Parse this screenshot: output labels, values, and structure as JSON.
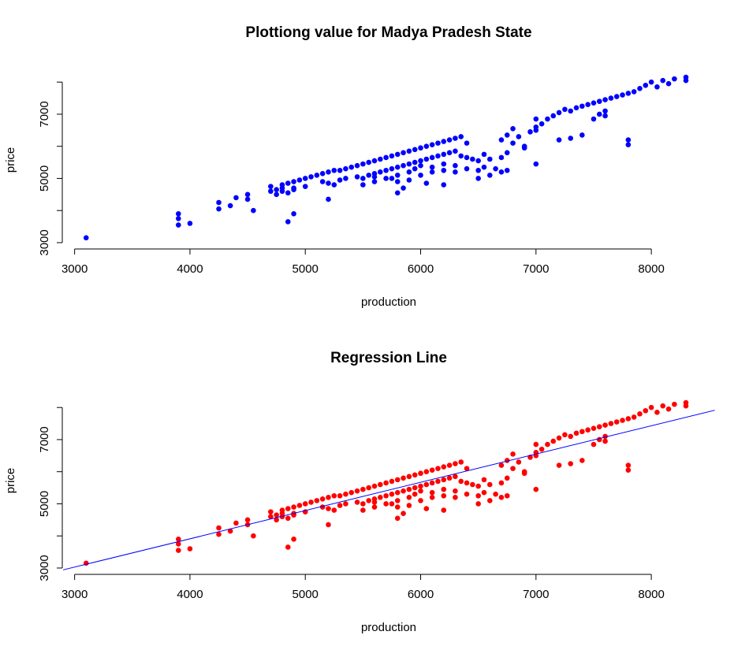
{
  "chart_data": [
    {
      "type": "scatter",
      "title": "Plottiong value for Madya Pradesh State",
      "xlabel": "production",
      "ylabel": "price",
      "xlim": [
        2900,
        8300
      ],
      "ylim": [
        2950,
        8250
      ],
      "xticks": [
        "3000",
        "4000",
        "5000",
        "6000",
        "7000",
        "8000"
      ],
      "yticks": [
        "3000",
        "5000",
        "7000"
      ],
      "point_color": "#0000ff",
      "series": [
        {
          "x": [
            3100,
            3900,
            3900,
            3900,
            4000,
            4250,
            4250,
            4350,
            4400,
            4500,
            4500,
            4550,
            4700,
            4700,
            4750,
            4800,
            4800,
            4850,
            4850,
            4900,
            4900,
            4950,
            5000,
            5050,
            5100,
            5150,
            5200,
            5250,
            5300,
            5350,
            5400,
            5450,
            5500,
            5550,
            5600,
            5650,
            5700,
            5750,
            5800,
            5850,
            5900,
            5950,
            6000,
            6050,
            6100,
            6150,
            6200,
            6250,
            6300,
            6350,
            6400,
            4750,
            4800,
            4900,
            5000,
            5150,
            5200,
            5300,
            5350,
            5450,
            5500,
            5550,
            5600,
            5650,
            5700,
            5750,
            5800,
            5850,
            5900,
            5950,
            6000,
            6050,
            6100,
            6150,
            6200,
            6250,
            6300,
            6350,
            6400,
            6450,
            6500,
            5600,
            5750,
            5800,
            5900,
            5950,
            6000,
            6100,
            6200,
            6300,
            6400,
            6500,
            5250,
            5500,
            5600,
            5700,
            5800,
            5900,
            6000,
            6100,
            6200,
            6300,
            4850,
            4900,
            5200,
            5800,
            5850,
            6050,
            6200,
            6550,
            6600,
            6650,
            6700,
            6750,
            6800,
            6850,
            6900,
            6950,
            7000,
            7050,
            7100,
            7150,
            7200,
            7250,
            7300,
            7350,
            7400,
            7450,
            7500,
            7550,
            7600,
            7650,
            7700,
            7750,
            7800,
            7850,
            7900,
            7950,
            8000,
            8050,
            8100,
            8150,
            8200,
            8300,
            8300,
            7500,
            7550,
            7600,
            6700,
            6750,
            6800,
            7000,
            7200,
            7300,
            7400,
            7600,
            7800,
            7800,
            6900,
            7000,
            6700,
            6750,
            6500,
            6600,
            7000,
            6550
          ],
          "y": [
            3150,
            3550,
            3750,
            3900,
            3600,
            4050,
            4250,
            4150,
            4400,
            4350,
            4500,
            4000,
            4600,
            4750,
            4650,
            4700,
            4800,
            4550,
            4850,
            4700,
            4900,
            4950,
            5000,
            5050,
            5100,
            5150,
            5200,
            5250,
            5250,
            5300,
            5350,
            5400,
            5450,
            5500,
            5550,
            5600,
            5650,
            5700,
            5750,
            5800,
            5850,
            5900,
            5950,
            6000,
            6050,
            6100,
            6150,
            6200,
            6250,
            6300,
            6100,
            4500,
            4600,
            4650,
            4750,
            4900,
            4850,
            4950,
            5000,
            5050,
            5000,
            5100,
            5150,
            5200,
            5250,
            5300,
            5350,
            5400,
            5450,
            5500,
            5550,
            5600,
            5650,
            5700,
            5750,
            5800,
            5850,
            5700,
            5650,
            5600,
            5550,
            4900,
            5000,
            5100,
            5200,
            5300,
            5400,
            5350,
            5450,
            5400,
            5300,
            5250,
            4800,
            4800,
            5050,
            5000,
            4900,
            4950,
            5100,
            5200,
            5250,
            5200,
            3650,
            3900,
            4350,
            4550,
            4700,
            4850,
            4800,
            5350,
            5600,
            5300,
            5650,
            5800,
            6100,
            6300,
            5950,
            6450,
            6600,
            6700,
            6850,
            6950,
            7050,
            7150,
            7100,
            7200,
            7250,
            7300,
            7350,
            7400,
            7450,
            7500,
            7550,
            7600,
            7650,
            7700,
            7800,
            7900,
            8000,
            7850,
            8050,
            7950,
            8100,
            8050,
            8150,
            6850,
            7000,
            7100,
            6200,
            6350,
            6550,
            6850,
            6200,
            6250,
            6350,
            6950,
            6050,
            6200,
            6000,
            5450,
            5200,
            5250,
            5000,
            5100,
            6500,
            5750
          ]
        }
      ]
    },
    {
      "type": "scatter",
      "title": "Regression Line",
      "xlabel": "production",
      "ylabel": "price",
      "xlim": [
        2900,
        8300
      ],
      "ylim": [
        2950,
        8250
      ],
      "xticks": [
        "3000",
        "4000",
        "5000",
        "6000",
        "7000",
        "8000"
      ],
      "yticks": [
        "3000",
        "5000",
        "7000"
      ],
      "point_color": "#ff0000",
      "line_color": "#0000ff",
      "regression_line": {
        "slope": 0.88,
        "intercept": 390
      },
      "series": [
        {
          "x": [
            3100,
            3900,
            3900,
            3900,
            4000,
            4250,
            4250,
            4350,
            4400,
            4500,
            4500,
            4550,
            4700,
            4700,
            4750,
            4800,
            4800,
            4850,
            4850,
            4900,
            4900,
            4950,
            5000,
            5050,
            5100,
            5150,
            5200,
            5250,
            5300,
            5350,
            5400,
            5450,
            5500,
            5550,
            5600,
            5650,
            5700,
            5750,
            5800,
            5850,
            5900,
            5950,
            6000,
            6050,
            6100,
            6150,
            6200,
            6250,
            6300,
            6350,
            6400,
            4750,
            4800,
            4900,
            5000,
            5150,
            5200,
            5300,
            5350,
            5450,
            5500,
            5550,
            5600,
            5650,
            5700,
            5750,
            5800,
            5850,
            5900,
            5950,
            6000,
            6050,
            6100,
            6150,
            6200,
            6250,
            6300,
            6350,
            6400,
            6450,
            6500,
            5600,
            5750,
            5800,
            5900,
            5950,
            6000,
            6100,
            6200,
            6300,
            6400,
            6500,
            5250,
            5500,
            5600,
            5700,
            5800,
            5900,
            6000,
            6100,
            6200,
            6300,
            4850,
            4900,
            5200,
            5800,
            5850,
            6050,
            6200,
            6550,
            6600,
            6650,
            6700,
            6750,
            6800,
            6850,
            6900,
            6950,
            7000,
            7050,
            7100,
            7150,
            7200,
            7250,
            7300,
            7350,
            7400,
            7450,
            7500,
            7550,
            7600,
            7650,
            7700,
            7750,
            7800,
            7850,
            7900,
            7950,
            8000,
            8050,
            8100,
            8150,
            8200,
            8300,
            8300,
            7500,
            7550,
            7600,
            6700,
            6750,
            6800,
            7000,
            7200,
            7300,
            7400,
            7600,
            7800,
            7800,
            6900,
            7000,
            6700,
            6750,
            6500,
            6600,
            7000,
            6550
          ],
          "y": [
            3150,
            3550,
            3750,
            3900,
            3600,
            4050,
            4250,
            4150,
            4400,
            4350,
            4500,
            4000,
            4600,
            4750,
            4650,
            4700,
            4800,
            4550,
            4850,
            4700,
            4900,
            4950,
            5000,
            5050,
            5100,
            5150,
            5200,
            5250,
            5250,
            5300,
            5350,
            5400,
            5450,
            5500,
            5550,
            5600,
            5650,
            5700,
            5750,
            5800,
            5850,
            5900,
            5950,
            6000,
            6050,
            6100,
            6150,
            6200,
            6250,
            6300,
            6100,
            4500,
            4600,
            4650,
            4750,
            4900,
            4850,
            4950,
            5000,
            5050,
            5000,
            5100,
            5150,
            5200,
            5250,
            5300,
            5350,
            5400,
            5450,
            5500,
            5550,
            5600,
            5650,
            5700,
            5750,
            5800,
            5850,
            5700,
            5650,
            5600,
            5550,
            4900,
            5000,
            5100,
            5200,
            5300,
            5400,
            5350,
            5450,
            5400,
            5300,
            5250,
            4800,
            4800,
            5050,
            5000,
            4900,
            4950,
            5100,
            5200,
            5250,
            5200,
            3650,
            3900,
            4350,
            4550,
            4700,
            4850,
            4800,
            5350,
            5600,
            5300,
            5650,
            5800,
            6100,
            6300,
            5950,
            6450,
            6600,
            6700,
            6850,
            6950,
            7050,
            7150,
            7100,
            7200,
            7250,
            7300,
            7350,
            7400,
            7450,
            7500,
            7550,
            7600,
            7650,
            7700,
            7800,
            7900,
            8000,
            7850,
            8050,
            7950,
            8100,
            8050,
            8150,
            6850,
            7000,
            7100,
            6200,
            6350,
            6550,
            6850,
            6200,
            6250,
            6350,
            6950,
            6050,
            6200,
            6000,
            5450,
            5200,
            5250,
            5000,
            5100,
            6500,
            5750
          ]
        }
      ]
    }
  ]
}
